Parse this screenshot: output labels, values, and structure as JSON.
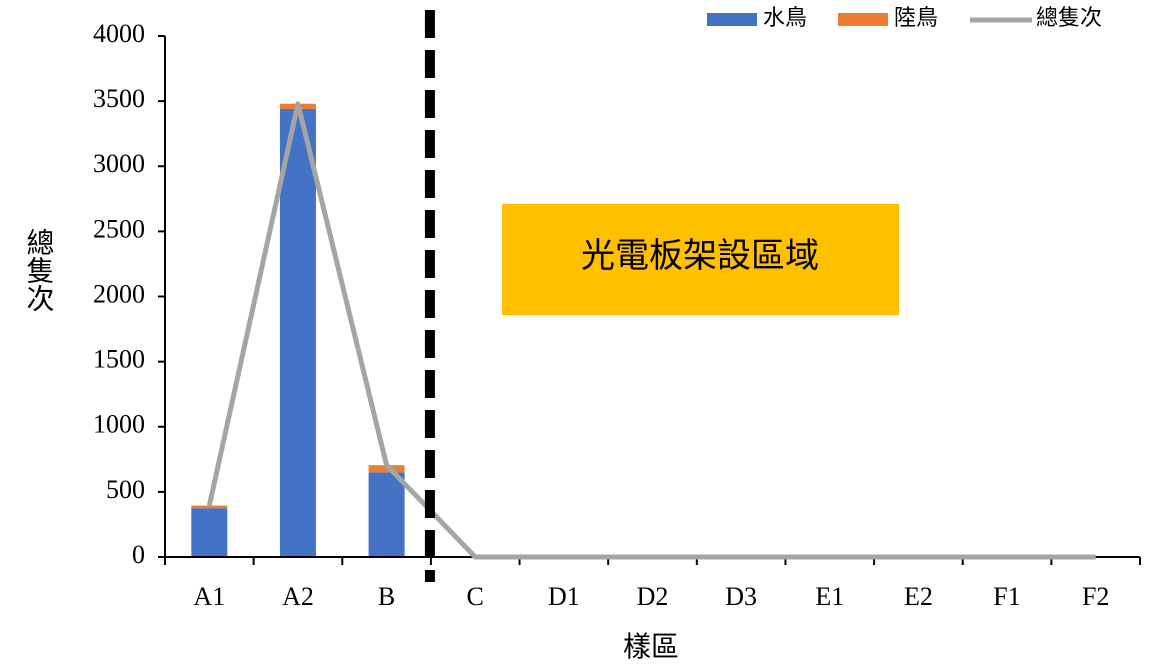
{
  "chart_data": {
    "type": "bar",
    "stacked": true,
    "categories": [
      "A1",
      "A2",
      "B",
      "C",
      "D1",
      "D2",
      "D3",
      "E1",
      "E2",
      "F1",
      "F2"
    ],
    "series": [
      {
        "name": "水鳥",
        "type": "bar",
        "color": "#4472C4",
        "values": [
          375,
          3440,
          650,
          0,
          0,
          0,
          0,
          0,
          0,
          0,
          0
        ]
      },
      {
        "name": "陸鳥",
        "type": "bar",
        "color": "#ED7D31",
        "values": [
          20,
          40,
          55,
          0,
          0,
          0,
          0,
          0,
          0,
          0,
          0
        ]
      },
      {
        "name": "總隻次",
        "type": "line",
        "color": "#A5A5A5",
        "values": [
          395,
          3480,
          705,
          0,
          0,
          0,
          0,
          0,
          0,
          0,
          0
        ]
      }
    ],
    "title": "",
    "xlabel": "樣區",
    "ylabel": "總隻次",
    "ylim": [
      0,
      4000
    ],
    "yticks": [
      0,
      500,
      1000,
      1500,
      2000,
      2500,
      3000,
      3500,
      4000
    ],
    "grid": false,
    "legend_position": "top-right",
    "annotation": {
      "text": "光電板架設區域",
      "color": "#FFC000"
    },
    "divider": {
      "after_category": "B",
      "style": "dashed",
      "color": "#000000"
    }
  }
}
